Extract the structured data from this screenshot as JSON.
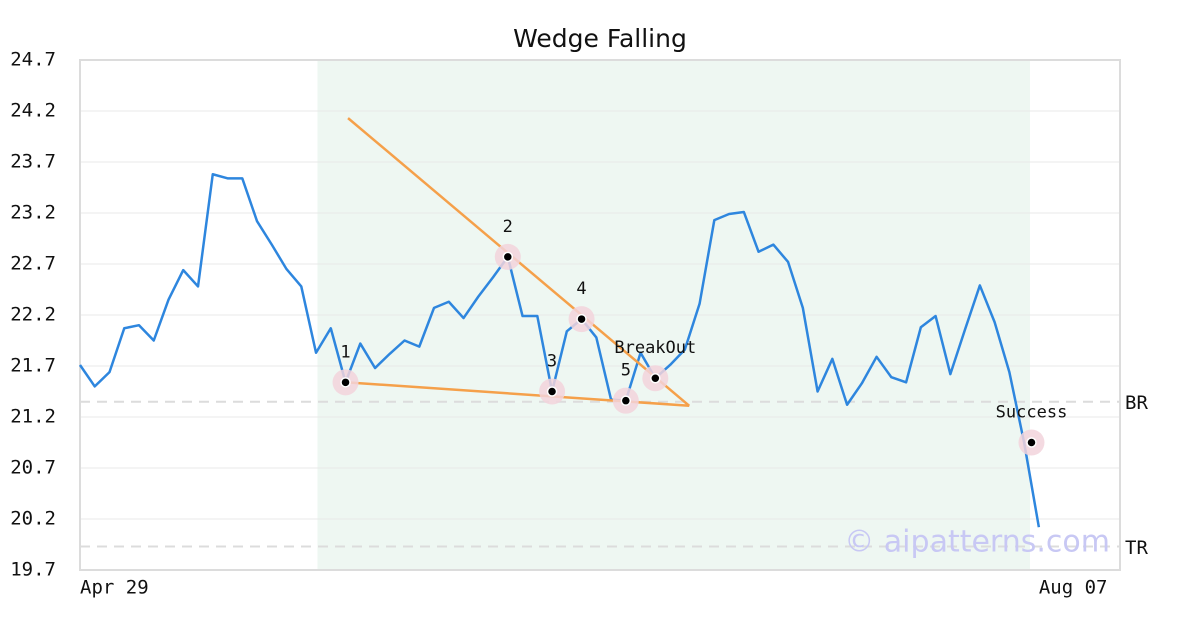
{
  "chart_data": {
    "type": "line",
    "title": "Wedge Falling",
    "categories": [
      "Apr 29",
      null,
      null,
      null,
      null,
      null,
      null,
      null,
      null,
      null,
      null,
      null,
      null,
      null,
      null,
      null,
      null,
      null,
      null,
      null,
      null,
      null,
      null,
      null,
      null,
      null,
      null,
      null,
      null,
      null,
      null,
      null,
      null,
      null,
      null,
      null,
      null,
      null,
      null,
      null,
      null,
      null,
      null,
      null,
      null,
      null,
      null,
      null,
      null,
      null,
      null,
      null,
      null,
      null,
      null,
      null,
      null,
      null,
      null,
      null,
      null,
      null,
      null,
      null,
      null,
      "Aug 07"
    ],
    "series": [
      {
        "color": "#2e86de",
        "values": [
          21.71,
          21.5,
          21.64,
          22.07,
          22.1,
          21.95,
          22.35,
          22.64,
          22.48,
          23.58,
          23.54,
          23.54,
          23.12,
          22.89,
          22.65,
          22.48,
          21.83,
          22.07,
          21.54,
          21.92,
          21.68,
          21.82,
          21.95,
          21.89,
          22.27,
          22.33,
          22.17,
          22.38,
          22.57,
          22.77,
          22.19,
          22.19,
          21.45,
          22.04,
          22.16,
          21.98,
          21.37,
          21.36,
          21.83,
          21.58,
          21.71,
          21.86,
          22.31,
          23.13,
          23.19,
          23.21,
          22.82,
          22.89,
          22.72,
          22.27,
          21.45,
          21.77,
          21.32,
          21.53,
          21.79,
          21.59,
          21.54,
          22.08,
          22.19,
          21.62,
          22.06,
          22.49,
          22.13,
          21.64,
          20.95,
          20.12
        ]
      }
    ],
    "xlim": [
      0,
      70.5
    ],
    "ylim": [
      19.7,
      24.7
    ],
    "yticks": [
      19.7,
      20.2,
      20.7,
      21.2,
      21.7,
      22.2,
      22.7,
      23.2,
      23.7,
      24.2,
      24.7
    ],
    "grid": true,
    "highlight": {
      "from": 16.1,
      "to": 64.4,
      "color": "#eef7f2"
    },
    "levels": [
      {
        "label": "BR",
        "value": 21.35
      },
      {
        "label": "TR",
        "value": 19.93
      }
    ],
    "trendlines": [
      {
        "color": "#f5a04a",
        "x": [
          18.17,
          41.3
        ],
        "y": [
          24.13,
          21.31
        ]
      },
      {
        "color": "#f5a04a",
        "x": [
          18.1,
          41.3
        ],
        "y": [
          21.54,
          21.31
        ]
      }
    ],
    "points": [
      {
        "label": "1",
        "x": 18,
        "y": 21.54
      },
      {
        "label": "2",
        "x": 29,
        "y": 22.77
      },
      {
        "label": "3",
        "x": 32,
        "y": 21.45
      },
      {
        "label": "4",
        "x": 34,
        "y": 22.16
      },
      {
        "label": "5",
        "x": 37,
        "y": 21.36
      },
      {
        "label": "BreakOut",
        "x": 39,
        "y": 21.58
      },
      {
        "label": "Success",
        "x": 64.5,
        "y": 20.95
      }
    ],
    "watermark": "© aipatterns.com"
  }
}
